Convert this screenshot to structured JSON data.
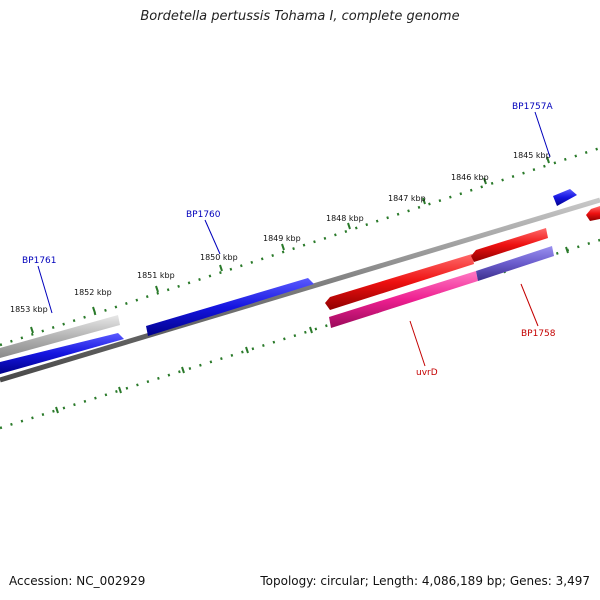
{
  "title": "Bordetella pertussis Tohama I, complete genome",
  "footer": {
    "accession": "Accession: NC_002929",
    "summary": "Topology: circular; Length: 4,086,189 bp; Genes: 3,497"
  },
  "colors": {
    "forward_gene": "#1515e0",
    "reverse_gene": "#ee1010",
    "reverse_gene_light": "#ee1f90",
    "overlap_gene": "#6a5ccc",
    "grey_gene": "#b4b4b4",
    "backbone": "#7a7a7a",
    "tick": "#2a7a2a",
    "forward_label": "#0000bb",
    "reverse_label": "#c40000"
  },
  "ticks": [
    "1845 kbp",
    "1846 kbp",
    "1847 kbp",
    "1848 kbp",
    "1849 kbp",
    "1850 kbp",
    "1851 kbp",
    "1852 kbp",
    "1853 kbp"
  ],
  "gene_labels": [
    {
      "id": "bp1757a",
      "text": "BP1757A",
      "strand": "forward"
    },
    {
      "id": "bp1760",
      "text": "BP1760",
      "strand": "forward"
    },
    {
      "id": "bp1761",
      "text": "BP1761",
      "strand": "forward"
    },
    {
      "id": "uvrd",
      "text": "uvrD",
      "strand": "reverse"
    },
    {
      "id": "bp1758",
      "text": "BP1758",
      "strand": "reverse"
    }
  ]
}
